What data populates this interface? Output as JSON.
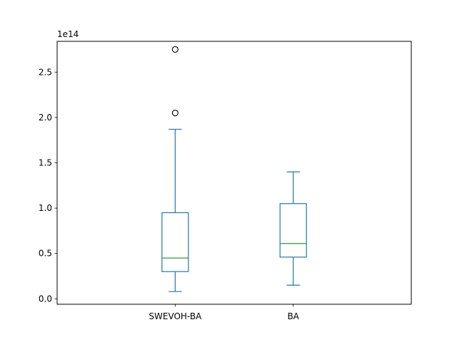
{
  "chart_data": {
    "type": "box",
    "title": "",
    "xlabel": "",
    "ylabel": "",
    "categories": [
      "SWEVOH-BA",
      "BA"
    ],
    "y_scale_exponent_label": "1e14",
    "y_scale_factor": 100000000000000.0,
    "ylim": [
      -0.06,
      2.84
    ],
    "yticks": [
      0.0,
      0.5,
      1.0,
      1.5,
      2.0,
      2.5
    ],
    "ytick_labels": [
      "0.0",
      "0.5",
      "1.0",
      "1.5",
      "2.0",
      "2.5"
    ],
    "grid": false,
    "legend": "none",
    "boxes": [
      {
        "category": "SWEVOH-BA",
        "whisker_low": 0.08,
        "q1": 0.3,
        "median": 0.45,
        "q3": 0.95,
        "whisker_high": 1.87,
        "outliers": [
          2.05,
          2.75
        ]
      },
      {
        "category": "BA",
        "whisker_low": 0.15,
        "q1": 0.46,
        "median": 0.61,
        "q3": 1.05,
        "whisker_high": 1.4,
        "outliers": []
      }
    ],
    "colors": {
      "box": "#1f77b4",
      "median": "#2ca02c",
      "outlier": "#000000"
    }
  }
}
